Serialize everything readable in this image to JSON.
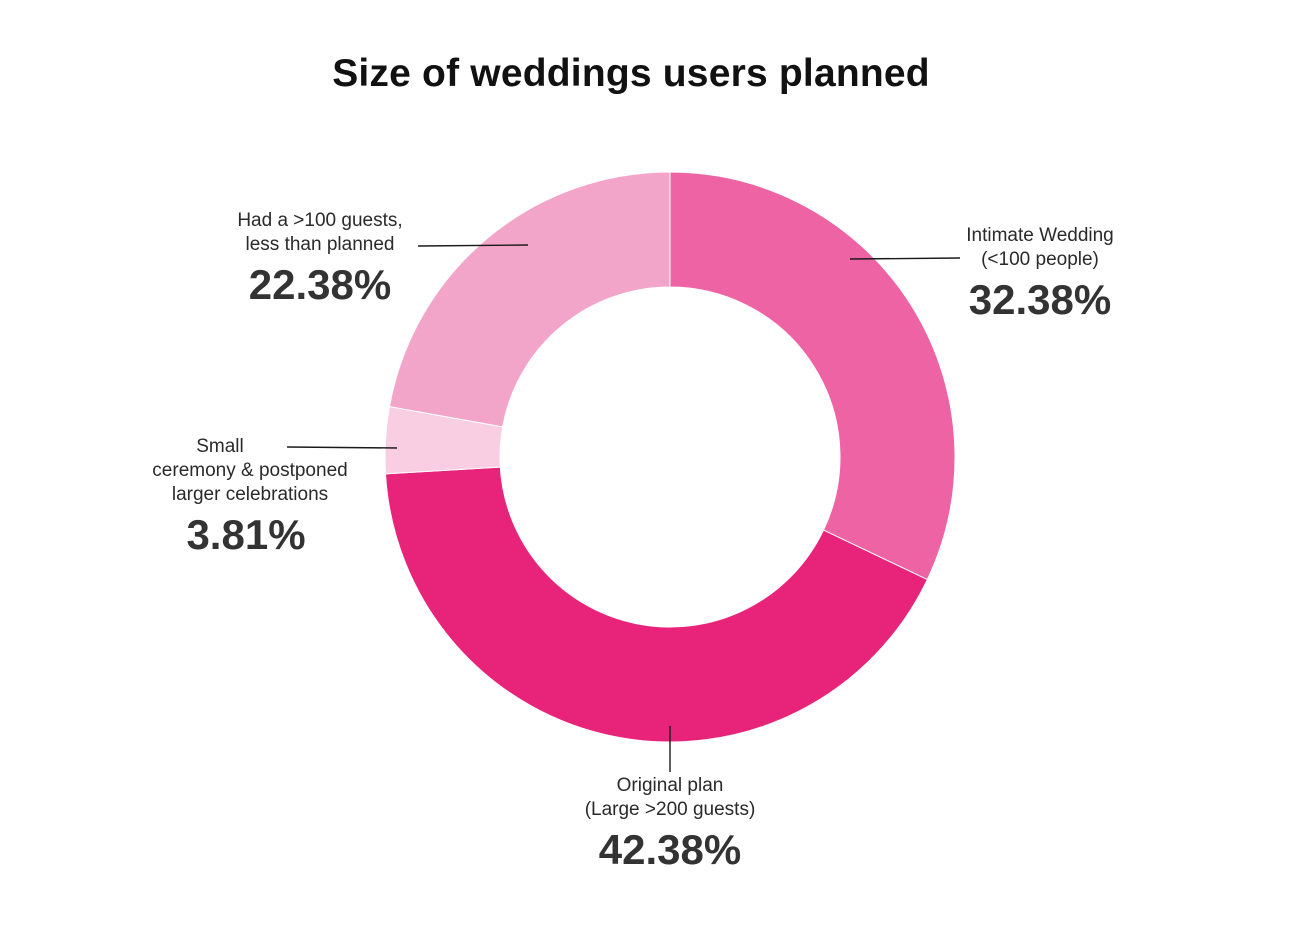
{
  "chart_data": {
    "type": "pie",
    "title": "Size of weddings users planned",
    "unit": "%",
    "slices": [
      {
        "label_lines": [
          "Intimate Wedding",
          "(<100 people)"
        ],
        "value": 32.38,
        "value_label": "32.38%",
        "color": "#ee63a3"
      },
      {
        "label_lines": [
          "Original plan",
          "(Large >200 guests)"
        ],
        "value": 42.38,
        "value_label": "42.38%",
        "color": "#e8237a"
      },
      {
        "label_lines": [
          "Small",
          "ceremony & postponed",
          "larger celebrations"
        ],
        "value": 3.81,
        "value_label": "3.81%",
        "color": "#f9cde2"
      },
      {
        "label_lines": [
          "Had a >100 guests,",
          "less than planned"
        ],
        "value": 22.38,
        "value_label": "22.38%",
        "color": "#f3a5c9"
      }
    ]
  }
}
